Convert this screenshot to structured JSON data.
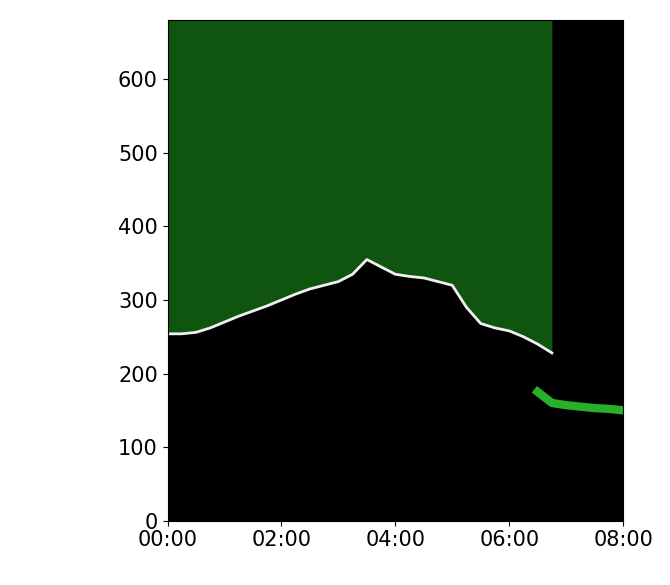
{
  "chart_data": {
    "type": "line",
    "x": [
      0,
      0.25,
      0.5,
      0.75,
      1,
      1.25,
      1.5,
      1.75,
      2,
      2.25,
      2.5,
      2.75,
      3,
      3.25,
      3.5,
      3.75,
      4,
      4.25,
      4.5,
      4.75,
      5,
      5.25,
      5.5,
      5.75,
      6,
      6.25,
      6.5,
      6.75,
      7,
      7.25,
      7.5,
      7.75,
      8
    ],
    "series": [
      {
        "color": "#f0f0f0",
        "line_style": "solid",
        "values": [
          254,
          254,
          256,
          262,
          270,
          278,
          285,
          292,
          300,
          308,
          315,
          320,
          325,
          335,
          355,
          345,
          335,
          332,
          330,
          325,
          320,
          290,
          268,
          262,
          258,
          250,
          240,
          228,
          null,
          null,
          null,
          null,
          null
        ]
      },
      {
        "color": "#33dd33",
        "line_style": "solid",
        "values": [
          null,
          null,
          null,
          null,
          null,
          null,
          null,
          null,
          null,
          null,
          null,
          null,
          null,
          null,
          null,
          null,
          null,
          null,
          null,
          null,
          null,
          null,
          null,
          null,
          null,
          null,
          175,
          160,
          157,
          155,
          153,
          152,
          150
        ]
      }
    ],
    "xlim": [
      0,
      8
    ],
    "xticks": [
      {
        "value": 0,
        "label": "00:00"
      },
      {
        "value": 2,
        "label": "02:00"
      },
      {
        "value": 4,
        "label": "04:00"
      },
      {
        "value": 6,
        "label": "06:00"
      },
      {
        "value": 8,
        "label": "08:00"
      }
    ],
    "ylim": [
      0,
      680
    ],
    "yticks": [
      0,
      100,
      200,
      300,
      400,
      500,
      600
    ],
    "grid": false
  }
}
